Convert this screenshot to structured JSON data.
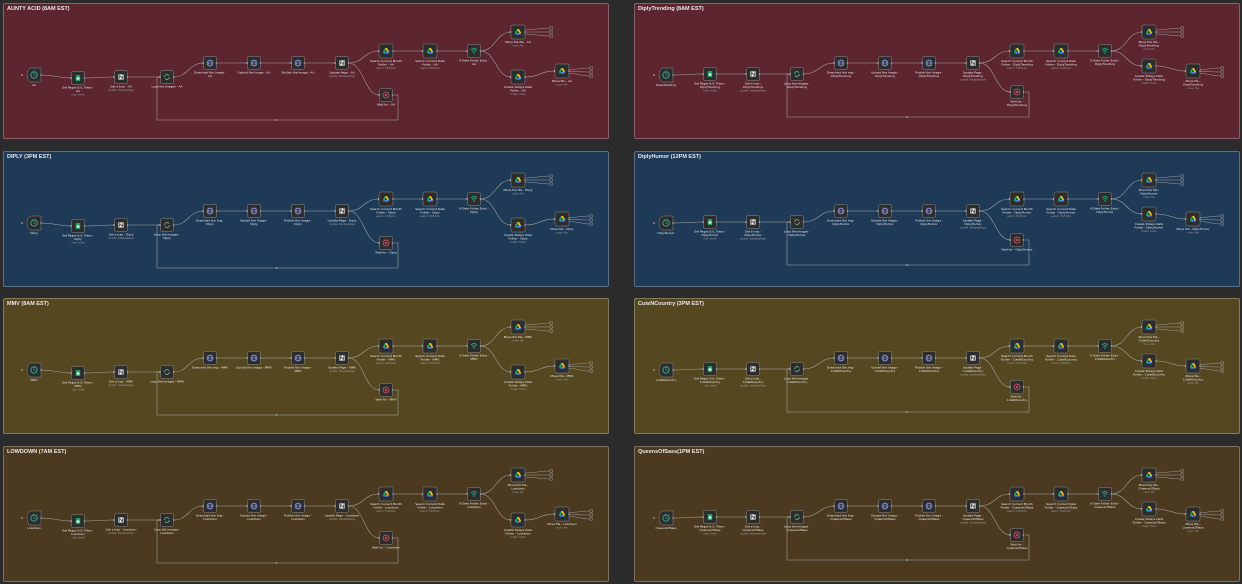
{
  "colors": {
    "canvas": "#2b2b2b",
    "node_fill": "#2d2d2d",
    "node_border": "#8c8c8c",
    "connection": "#a9a9a9",
    "trigger_icon": "#3fbfa5",
    "sheets_icon": "#1ea362",
    "error_icon": "#e0576b",
    "webhook_icon": "#19c98a"
  },
  "panels": [
    {
      "title": "AUNTY ACID (8AM EST)",
      "color": "#5c2530",
      "nodes": {
        "trigger": {
          "label": "AA",
          "sub": ""
        },
        "sheets": {
          "label": "Get Pages & IL Token - AA",
          "sub": "read: sheet"
        },
        "notion1": {
          "label": "Get a tray - AA",
          "sub": "update: databasePage"
        },
        "loop": {
          "label": "Loop the Images - AA",
          "sub": ""
        },
        "http1": {
          "label": "Download the Image - AA",
          "sub": ""
        },
        "http2": {
          "label": "Upload the Image - AA",
          "sub": ""
        },
        "http3": {
          "label": "Publish the Image - AA",
          "sub": ""
        },
        "notion2": {
          "label": "Update Page - AA",
          "sub": "update: databasePage"
        },
        "drive1": {
          "label": "Search Current Month Folder - AA",
          "sub": "search: fileFolder"
        },
        "drive2": {
          "label": "Search Current Date Folder - AA",
          "sub": "search: fileFolder"
        },
        "filter": {
          "label": "If Date Folder Exist - AA",
          "sub": ""
        },
        "error": {
          "label": "Wait for - AA",
          "sub": ""
        },
        "drive3": {
          "label": "Move the file - AA",
          "sub": "move: file"
        },
        "drive4": {
          "label": "Create Todays Date Folder - AA",
          "sub": "create: folder"
        },
        "drive5": {
          "label": "Move file - AA",
          "sub": "move: file"
        }
      }
    },
    {
      "title": "DiplyTrending (8AM EST)",
      "color": "#5c2530",
      "nodes": {
        "trigger": {
          "label": "DiplyTrending",
          "sub": ""
        },
        "sheets": {
          "label": "Get Pages & IL Token - DiplyTrending",
          "sub": "read: sheet"
        },
        "notion1": {
          "label": "Get a tray - DiplyTrending",
          "sub": "update: databasePage"
        },
        "loop": {
          "label": "Loop the Images - DiplyTrending",
          "sub": ""
        },
        "http1": {
          "label": "Download the Img - DiplyTrending",
          "sub": ""
        },
        "http2": {
          "label": "Upload the Image - DiplyTrending",
          "sub": ""
        },
        "http3": {
          "label": "Publish the Image - DiplyTrending",
          "sub": ""
        },
        "notion2": {
          "label": "Update Page - DiplyTrending",
          "sub": "update: databasePage"
        },
        "drive1": {
          "label": "Search Current Month Folder - DiplyTrending",
          "sub": "search: fileFolder"
        },
        "drive2": {
          "label": "Search Current Date Folder - DiplyTrending",
          "sub": "search: fileFolder"
        },
        "filter": {
          "label": "If Date Folder Exist - DiplyTrending",
          "sub": ""
        },
        "error": {
          "label": "Wait for - DiplyTrending",
          "sub": ""
        },
        "drive3": {
          "label": "Move the file - DiplyTrending",
          "sub": "move: file"
        },
        "drive4": {
          "label": "Create Todays Date Folder - DiplyTrending",
          "sub": "create: folder"
        },
        "drive5": {
          "label": "Move file - DiplyTrending",
          "sub": "move: file"
        }
      }
    },
    {
      "title": "DIPLY (3PM EST)",
      "color": "#1e3a56",
      "nodes": {
        "trigger": {
          "label": "Diply",
          "sub": ""
        },
        "sheets": {
          "label": "Get Pages & IL Token - Diply",
          "sub": "read: sheet"
        },
        "notion1": {
          "label": "Get a tray - Diply",
          "sub": "update: databasePage"
        },
        "loop": {
          "label": "Loop the Images - Diply",
          "sub": ""
        },
        "http1": {
          "label": "Download the Img - Diply",
          "sub": ""
        },
        "http2": {
          "label": "Upload the Image - Diply",
          "sub": ""
        },
        "http3": {
          "label": "Publish the Image - Diply",
          "sub": ""
        },
        "notion2": {
          "label": "Update Page - Diply",
          "sub": "update: databasePage"
        },
        "drive1": {
          "label": "Search Current Month Folder - Diply",
          "sub": "search: fileFolder"
        },
        "drive2": {
          "label": "Search Current Date Folder - Diply",
          "sub": "search: fileFolder"
        },
        "filter": {
          "label": "If Date Folder Exist - Diply",
          "sub": ""
        },
        "error": {
          "label": "Wait for - Diply",
          "sub": ""
        },
        "drive3": {
          "label": "Move the file - Diply",
          "sub": "move: file"
        },
        "drive4": {
          "label": "Create Todays Date Folder - Diply",
          "sub": "create: folder"
        },
        "drive5": {
          "label": "Move file - Diply",
          "sub": "move: file"
        }
      }
    },
    {
      "title": "DiplyHumor (12PM EST)",
      "color": "#1e3a56",
      "nodes": {
        "trigger": {
          "label": "DiplyHumor",
          "sub": ""
        },
        "sheets": {
          "label": "Get Pages & IL Token - DiplyHumor",
          "sub": "read: sheet"
        },
        "notion1": {
          "label": "Get a tray - DiplyHumor",
          "sub": "update: databasePage"
        },
        "loop": {
          "label": "Loop the Images - DiplyHumor",
          "sub": ""
        },
        "http1": {
          "label": "Download the Img - DiplyHumor",
          "sub": ""
        },
        "http2": {
          "label": "Upload the Image - DiplyHumor",
          "sub": ""
        },
        "http3": {
          "label": "Publish the Image - DiplyHumor",
          "sub": ""
        },
        "notion2": {
          "label": "Update Page - DiplyHumor",
          "sub": "update: databasePage"
        },
        "drive1": {
          "label": "Search Current Month Folder - DiplyHumor",
          "sub": "search: fileFolder"
        },
        "drive2": {
          "label": "Search Current Date Folder - DiplyHumor",
          "sub": "search: fileFolder"
        },
        "filter": {
          "label": "If Date Folder Exist - DiplyHumor",
          "sub": ""
        },
        "error": {
          "label": "Wait for - DiplyHumor",
          "sub": ""
        },
        "drive3": {
          "label": "Move the file - DiplyHumor",
          "sub": "move: file"
        },
        "drive4": {
          "label": "Create Todays Date Folder - DiplyHumor",
          "sub": "create: folder"
        },
        "drive5": {
          "label": "Move file - DiplyHumor",
          "sub": "move: file"
        }
      }
    },
    {
      "title": "MMV (8AM EST)",
      "color": "#55471f",
      "nodes": {
        "trigger": {
          "label": "MMV",
          "sub": ""
        },
        "sheets": {
          "label": "Get Pages & IL Token - MMV",
          "sub": "read: sheet"
        },
        "notion1": {
          "label": "Get a tray - MMV",
          "sub": "update: databasePage"
        },
        "loop": {
          "label": "Loop the Images - MMV",
          "sub": ""
        },
        "http1": {
          "label": "Download the Img - MMV",
          "sub": ""
        },
        "http2": {
          "label": "Upload the Image - MMV",
          "sub": ""
        },
        "http3": {
          "label": "Publish the Image - MMV",
          "sub": ""
        },
        "notion2": {
          "label": "Update Page - MMV",
          "sub": "update: databasePage"
        },
        "drive1": {
          "label": "Search Current Month Folder - MMV",
          "sub": "search: fileFolder"
        },
        "drive2": {
          "label": "Search Current Date Folder - MMV",
          "sub": "search: fileFolder"
        },
        "filter": {
          "label": "If Date Folder Exist - MMV",
          "sub": ""
        },
        "error": {
          "label": "Wait for - MMV",
          "sub": ""
        },
        "drive3": {
          "label": "Move the file - MMV",
          "sub": "move: file"
        },
        "drive4": {
          "label": "Create Todays Date Folder - MMV",
          "sub": "create: folder"
        },
        "drive5": {
          "label": "Move file - MMV",
          "sub": "move: file"
        }
      }
    },
    {
      "title": "CuteNCountry (3PM EST)",
      "color": "#55471f",
      "nodes": {
        "trigger": {
          "label": "CuteNCountry",
          "sub": ""
        },
        "sheets": {
          "label": "Get Pages & IL Token - CuteNCountry",
          "sub": "read: sheet"
        },
        "notion1": {
          "label": "Get a tray - CuteNCountry",
          "sub": "update: databasePage"
        },
        "loop": {
          "label": "Loop the Images - CuteNCountry",
          "sub": ""
        },
        "http1": {
          "label": "Download the Img - CuteNCountry",
          "sub": ""
        },
        "http2": {
          "label": "Upload the Image - CuteNCountry",
          "sub": ""
        },
        "http3": {
          "label": "Publish the Image - CuteNCountry",
          "sub": ""
        },
        "notion2": {
          "label": "Update Page - CuteNCountry",
          "sub": "update: databasePage"
        },
        "drive1": {
          "label": "Search Current Month Folder - CuteNCountry",
          "sub": "search: fileFolder"
        },
        "drive2": {
          "label": "Search Current Date Folder - CuteNCountry",
          "sub": "search: fileFolder"
        },
        "filter": {
          "label": "If Date Folder Exist - CuteNCountry",
          "sub": ""
        },
        "error": {
          "label": "Wait for - CuteNCountry",
          "sub": ""
        },
        "drive3": {
          "label": "Move the file - CuteNCountry",
          "sub": "move: file"
        },
        "drive4": {
          "label": "Create Todays Date Folder - CuteNCountry",
          "sub": "create: folder"
        },
        "drive5": {
          "label": "Move file - CuteNCountry",
          "sub": "move: file"
        }
      }
    },
    {
      "title": "LOWDOWN (7AM EST)",
      "color": "#4b3a1f",
      "nodes": {
        "trigger": {
          "label": "Lowdown",
          "sub": ""
        },
        "sheets": {
          "label": "Get Pages & IL Token - Lowdown",
          "sub": "read: sheet"
        },
        "notion1": {
          "label": "Get a tray - Lowdown",
          "sub": "update: databasePage"
        },
        "loop": {
          "label": "Loop the Images - Lowdown",
          "sub": ""
        },
        "http1": {
          "label": "Download the Img - Lowdown",
          "sub": ""
        },
        "http2": {
          "label": "Upload the Image - Lowdown",
          "sub": ""
        },
        "http3": {
          "label": "Publish the Image - Lowdown",
          "sub": ""
        },
        "notion2": {
          "label": "Update Page - Lowdown",
          "sub": "update: databasePage"
        },
        "drive1": {
          "label": "Search Current Month Folder - Lowdown",
          "sub": "search: fileFolder"
        },
        "drive2": {
          "label": "Search Current Date Folder - Lowdown",
          "sub": "search: fileFolder"
        },
        "filter": {
          "label": "If Date Folder Exist - Lowdown",
          "sub": ""
        },
        "error": {
          "label": "Wait for - Lowdown",
          "sub": ""
        },
        "drive3": {
          "label": "Move the file - Lowdown",
          "sub": "move: file"
        },
        "drive4": {
          "label": "Create Todays Date Folder - Lowdown",
          "sub": "create: folder"
        },
        "drive5": {
          "label": "Move file - Lowdown",
          "sub": "move: file"
        }
      }
    },
    {
      "title": "QueensOfSass(1PM EST)",
      "color": "#4b3a1f",
      "nodes": {
        "trigger": {
          "label": "QueensOfSass",
          "sub": ""
        },
        "sheets": {
          "label": "Get Pages & IL Token - QueensOfSass",
          "sub": "read: sheet"
        },
        "notion1": {
          "label": "Get a tray - QueensOfSass",
          "sub": "update: databasePage"
        },
        "loop": {
          "label": "Loop the Images - QueensOfSass",
          "sub": ""
        },
        "http1": {
          "label": "Download the Img - QueensOfSass",
          "sub": ""
        },
        "http2": {
          "label": "Upload the Image - QueensOfSass",
          "sub": ""
        },
        "http3": {
          "label": "Publish the Image - QueensOfSass",
          "sub": ""
        },
        "notion2": {
          "label": "Update Page - QueensOfSass",
          "sub": "update: databasePage"
        },
        "drive1": {
          "label": "Search Current Month Folder - QueensOfSass",
          "sub": "search: fileFolder"
        },
        "drive2": {
          "label": "Search Current Date Folder - QueensOfSass",
          "sub": "search: fileFolder"
        },
        "filter": {
          "label": "If Date Folder Exist - QueensOfSass",
          "sub": ""
        },
        "error": {
          "label": "Wait for - QueensOfSass",
          "sub": ""
        },
        "drive3": {
          "label": "Move the file - QueensOfSass",
          "sub": "move: file"
        },
        "drive4": {
          "label": "Create Todays Date Folder - QueensOfSass",
          "sub": "create: folder"
        },
        "drive5": {
          "label": "Move file - QueensOfSass",
          "sub": "move: file"
        }
      }
    }
  ]
}
